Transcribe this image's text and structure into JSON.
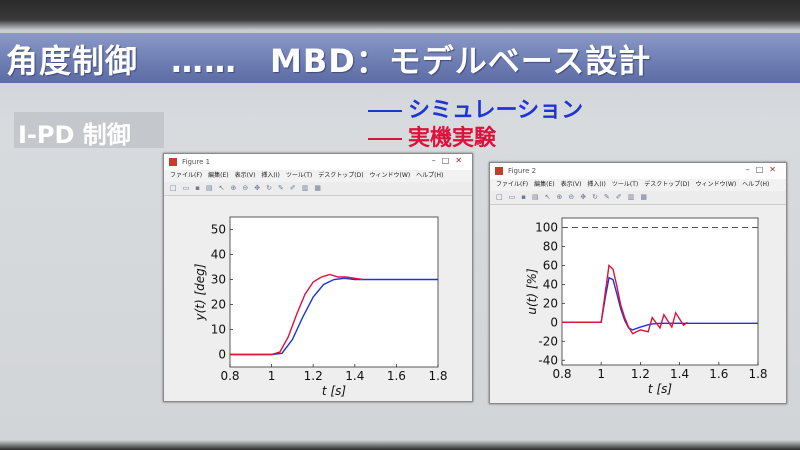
{
  "slide": {
    "title": "角度制御　……　MBD：モデルベース設計",
    "section_label": "I-PD 制御",
    "legend": [
      {
        "label": "シミュレーション",
        "color": "#1c35d6"
      },
      {
        "label": "実機実験",
        "color": "#e0103c"
      }
    ]
  },
  "figures": [
    {
      "window_title": "Figure 1",
      "menu": [
        "ファイル(F)",
        "編集(E)",
        "表示(V)",
        "挿入(I)",
        "ツール(T)",
        "デスクトップ(D)",
        "ウィンドウ(W)",
        "ヘルプ(H)"
      ],
      "toolbar_icons": [
        "new-icon",
        "open-icon",
        "save-icon",
        "print-icon",
        "pointer-icon",
        "zoom-in-icon",
        "zoom-out-icon",
        "pan-icon",
        "rotate-icon",
        "datacursor-icon",
        "brush-icon",
        "colorbar-icon",
        "legend-icon"
      ],
      "window_buttons": [
        "minimize-icon",
        "maximize-icon",
        "close-icon"
      ]
    },
    {
      "window_title": "Figure 2",
      "menu": [
        "ファイル(F)",
        "編集(E)",
        "表示(V)",
        "挿入(I)",
        "ツール(T)",
        "デスクトップ(D)",
        "ウィンドウ(W)",
        "ヘルプ(H)"
      ],
      "toolbar_icons": [
        "new-icon",
        "open-icon",
        "save-icon",
        "print-icon",
        "pointer-icon",
        "zoom-in-icon",
        "zoom-out-icon",
        "pan-icon",
        "rotate-icon",
        "datacursor-icon",
        "brush-icon",
        "colorbar-icon",
        "legend-icon"
      ],
      "window_buttons": [
        "minimize-icon",
        "maximize-icon",
        "close-icon"
      ]
    }
  ],
  "chart_data": [
    {
      "type": "line",
      "xlabel": "t [s]",
      "ylabel": "y(t) [deg]",
      "xlim": [
        0.8,
        1.8
      ],
      "ylim": [
        -5,
        55
      ],
      "xticks": [
        "0.8",
        "1",
        "1.2",
        "1.4",
        "1.6",
        "1.8"
      ],
      "yticks": [
        "0",
        "10",
        "20",
        "30",
        "40",
        "50"
      ],
      "series": [
        {
          "color": "#1c35d6",
          "x": [
            0.8,
            1.0,
            1.05,
            1.1,
            1.15,
            1.2,
            1.25,
            1.3,
            1.35,
            1.4,
            1.5,
            1.8
          ],
          "y": [
            0,
            0,
            0.5,
            6,
            15,
            23,
            28,
            30,
            30.5,
            30,
            30,
            30
          ]
        },
        {
          "color": "#e0103c",
          "x": [
            0.8,
            1.0,
            1.04,
            1.08,
            1.12,
            1.16,
            1.2,
            1.24,
            1.28,
            1.32,
            1.36,
            1.4,
            1.44
          ],
          "y": [
            0,
            0,
            1,
            7,
            16,
            24,
            29,
            31,
            32,
            31,
            31,
            30.5,
            30
          ]
        }
      ]
    },
    {
      "type": "line",
      "xlabel": "t [s]",
      "ylabel": "u(t) [%]",
      "xlim": [
        0.8,
        1.8
      ],
      "ylim": [
        -45,
        110
      ],
      "xticks": [
        "0.8",
        "1",
        "1.2",
        "1.4",
        "1.6",
        "1.8"
      ],
      "yticks": [
        "-40",
        "-20",
        "0",
        "20",
        "40",
        "60",
        "80",
        "100"
      ],
      "series": [
        {
          "color": "#1c35d6",
          "x": [
            0.8,
            1.0,
            1.02,
            1.04,
            1.06,
            1.08,
            1.1,
            1.12,
            1.14,
            1.16,
            1.2,
            1.25,
            1.3,
            1.8
          ],
          "y": [
            0,
            0,
            25,
            47,
            45,
            30,
            14,
            2,
            -6,
            -8,
            -5,
            -2,
            -1,
            -1
          ]
        },
        {
          "color": "#e0103c",
          "x": [
            0.8,
            1.0,
            1.02,
            1.04,
            1.06,
            1.08,
            1.1,
            1.12,
            1.14,
            1.16,
            1.2,
            1.24,
            1.26,
            1.3,
            1.32,
            1.36,
            1.38,
            1.42,
            1.44
          ],
          "y": [
            0,
            0,
            30,
            60,
            56,
            38,
            18,
            5,
            -5,
            -12,
            -8,
            -10,
            5,
            -6,
            8,
            -5,
            10,
            -3,
            0
          ]
        },
        {
          "color": "#555555",
          "x": [
            0.8,
            1.8
          ],
          "y": [
            100,
            100
          ],
          "dash": true
        }
      ]
    }
  ]
}
